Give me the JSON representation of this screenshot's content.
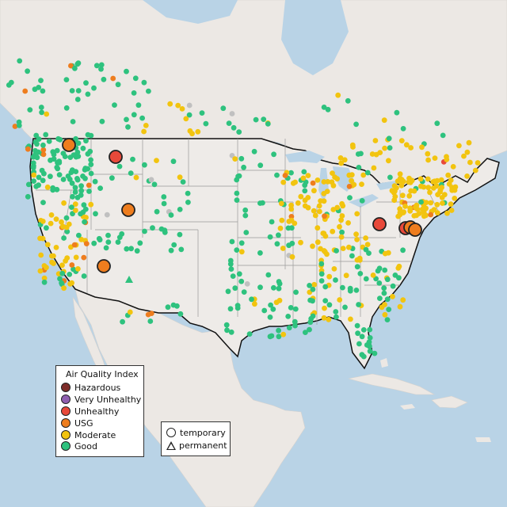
{
  "legend": {
    "title": "Air Quality Index",
    "categories": [
      {
        "label": "Hazardous",
        "color": "#7e2d2a"
      },
      {
        "label": "Very Unhealthy",
        "color": "#8f5fb0"
      },
      {
        "label": "Unhealthy",
        "color": "#e8493a"
      },
      {
        "label": "USG",
        "color": "#ee7d1e"
      },
      {
        "label": "Moderate",
        "color": "#f2c40f"
      },
      {
        "label": "Good",
        "color": "#2ec27e"
      }
    ]
  },
  "type_legend": {
    "temporary": "temporary",
    "permanent": "permanent"
  },
  "colors": {
    "water": "#b9d3e6",
    "land": "#ece8e4",
    "us_land": "#eeebe8",
    "border": "#111111",
    "state_line": "#9a9a9a",
    "no_data": "#c0c0c0"
  }
}
